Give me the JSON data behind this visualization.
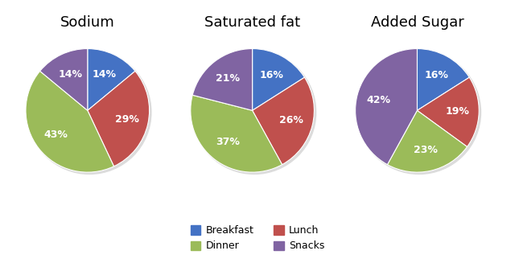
{
  "charts": [
    {
      "title": "Sodium",
      "values": [
        14,
        29,
        43,
        14
      ],
      "labels": [
        "14%",
        "29%",
        "43%",
        "14%"
      ],
      "startangle": 90
    },
    {
      "title": "Saturated fat",
      "values": [
        16,
        26,
        37,
        21
      ],
      "labels": [
        "16%",
        "26%",
        "37%",
        "21%"
      ],
      "startangle": 90
    },
    {
      "title": "Added Sugar",
      "values": [
        16,
        19,
        23,
        42
      ],
      "labels": [
        "16%",
        "19%",
        "23%",
        "42%"
      ],
      "startangle": 90
    }
  ],
  "colors": [
    "#4472C4",
    "#C0504D",
    "#9BBB59",
    "#8064A2"
  ],
  "legend_labels": [
    "Breakfast",
    "Lunch",
    "Dinner",
    "Snacks"
  ],
  "background_color": "#FFFFFF",
  "title_fontsize": 13,
  "label_fontsize": 9,
  "legend_fontsize": 9,
  "shadow_color": "#DCDCDC"
}
